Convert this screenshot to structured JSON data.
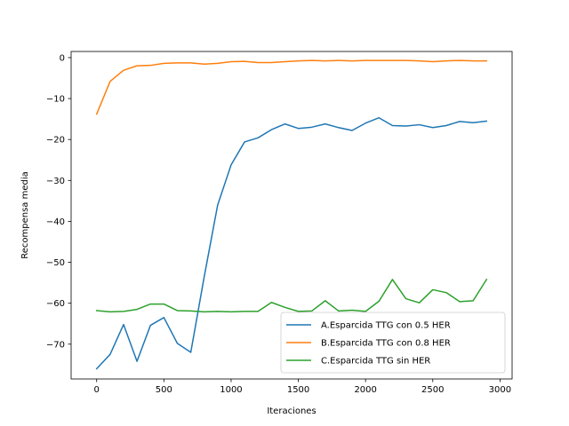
{
  "chart_data": {
    "type": "line",
    "title": "",
    "xlabel": "Iteraciones",
    "ylabel": "Recompensa media",
    "xlim": [
      -190,
      3090
    ],
    "ylim": [
      -78.5,
      1.5
    ],
    "xticks": [
      0,
      500,
      1000,
      1500,
      2000,
      2500,
      3000
    ],
    "xtick_labels": [
      "0",
      "500",
      "1000",
      "1500",
      "2000",
      "2500",
      "3000"
    ],
    "yticks": [
      0,
      -10,
      -20,
      -30,
      -40,
      -50,
      -60,
      -70
    ],
    "ytick_labels": [
      "0",
      "−10",
      "−20",
      "−30",
      "−40",
      "−50",
      "−60",
      "−70"
    ],
    "grid": false,
    "legend_position": "lower-right",
    "x": [
      0,
      100,
      200,
      300,
      400,
      500,
      600,
      700,
      800,
      900,
      1000,
      1100,
      1200,
      1300,
      1400,
      1500,
      1600,
      1700,
      1800,
      1900,
      2000,
      2100,
      2200,
      2300,
      2400,
      2500,
      2600,
      2700,
      2800,
      2900
    ],
    "series": [
      {
        "name": "A.Esparcida TTG con 0.5 HER",
        "color": "#1f77b4",
        "values": [
          -76.0,
          -72.5,
          -65.2,
          -74.2,
          -65.4,
          -63.5,
          -69.8,
          -72.0,
          -53.5,
          -36.0,
          -26.2,
          -20.6,
          -19.6,
          -17.6,
          -16.2,
          -17.3,
          -17.0,
          -16.2,
          -17.1,
          -17.8,
          -16.0,
          -14.7,
          -16.6,
          -16.7,
          -16.4,
          -17.1,
          -16.6,
          -15.6,
          -15.9,
          -15.5
        ]
      },
      {
        "name": "B.Esparcida TTG con 0.8 HER",
        "color": "#ff7f0e",
        "values": [
          -13.8,
          -5.8,
          -3.1,
          -2.0,
          -1.9,
          -1.4,
          -1.3,
          -1.3,
          -1.6,
          -1.4,
          -1.0,
          -0.9,
          -1.2,
          -1.2,
          -1.0,
          -0.8,
          -0.7,
          -0.8,
          -0.7,
          -0.8,
          -0.7,
          -0.7,
          -0.7,
          -0.7,
          -0.8,
          -1.0,
          -0.8,
          -0.7,
          -0.8,
          -0.8
        ]
      },
      {
        "name": "C.Esparcida TTG sin HER",
        "color": "#2ca02c",
        "values": [
          -61.8,
          -62.1,
          -62.0,
          -61.5,
          -60.2,
          -60.2,
          -61.8,
          -61.9,
          -62.1,
          -62.0,
          -62.1,
          -62.0,
          -62.0,
          -59.8,
          -61.0,
          -62.0,
          -61.9,
          -59.4,
          -61.9,
          -61.7,
          -62.0,
          -59.5,
          -54.2,
          -58.9,
          -59.9,
          -56.7,
          -57.4,
          -59.6,
          -59.4,
          -54.2
        ]
      }
    ]
  }
}
